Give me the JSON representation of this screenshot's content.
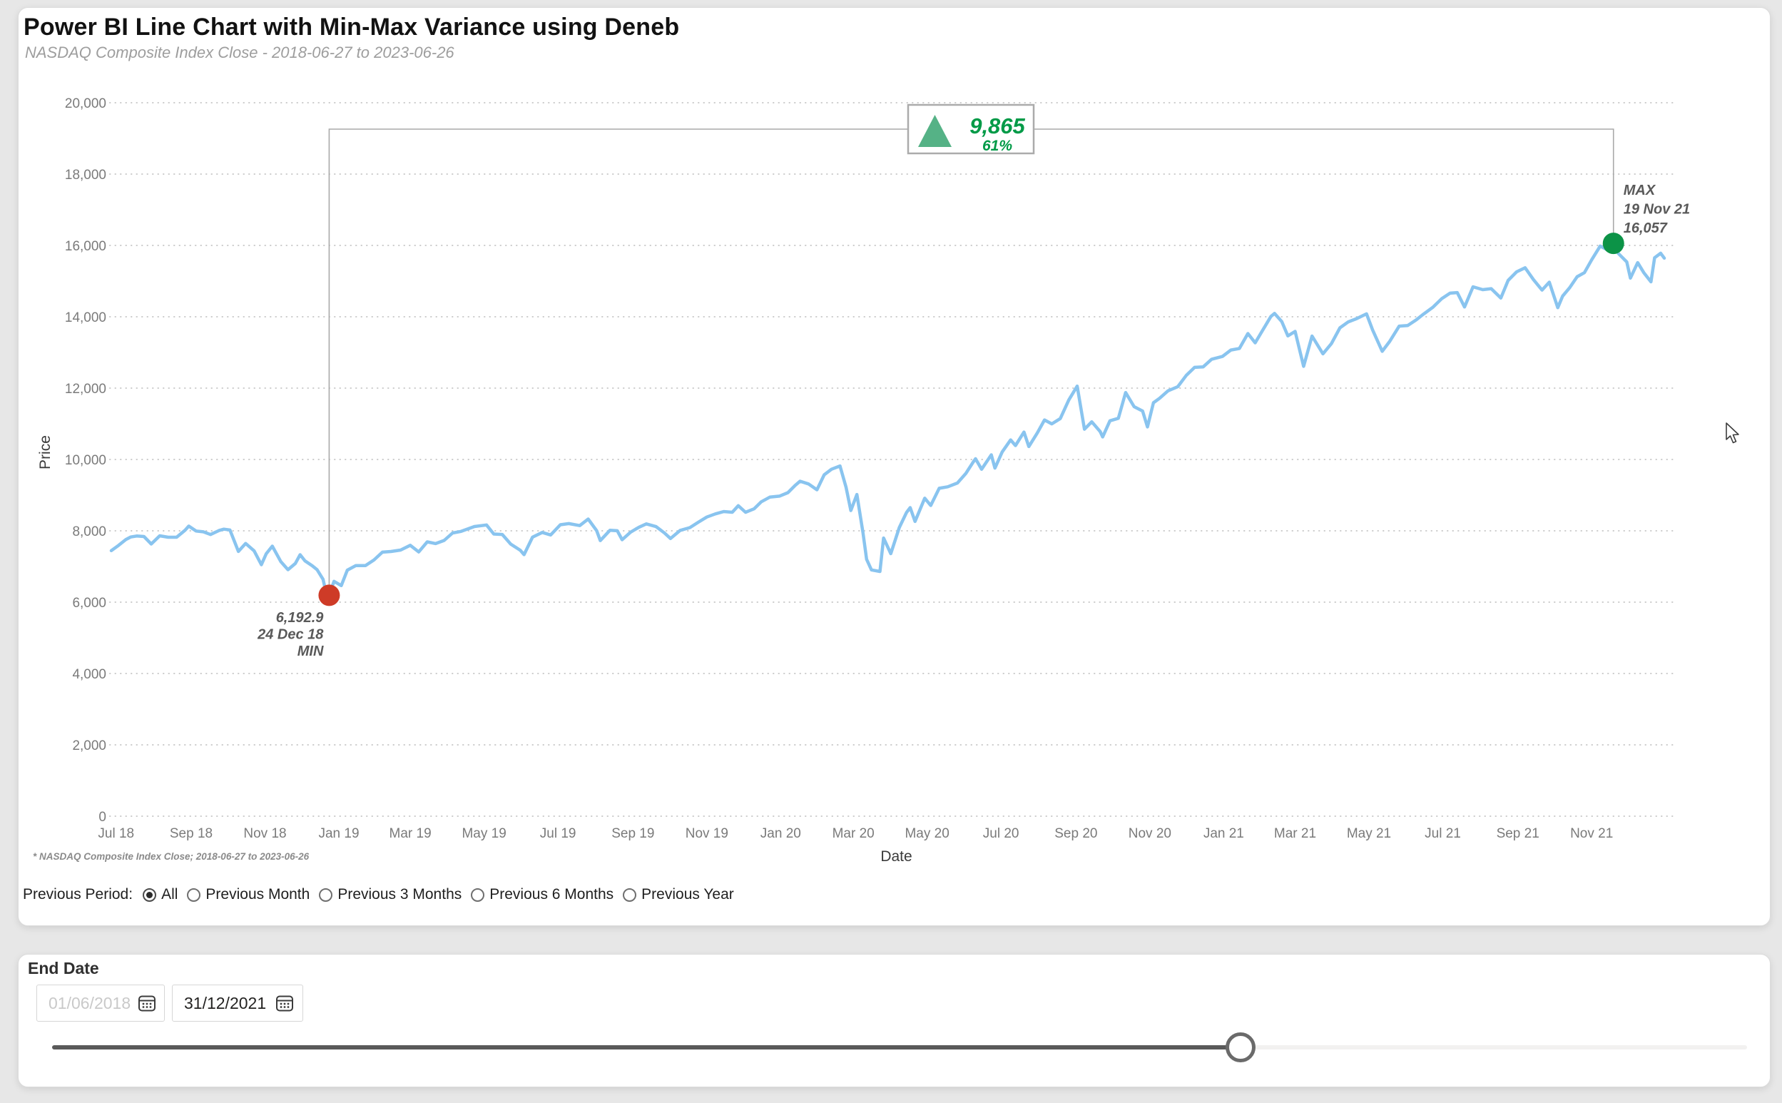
{
  "header": {
    "title": "Power BI Line Chart with Min-Max Variance using Deneb",
    "subtitle": "NASDAQ Composite Index Close - 2018-06-27 to 2023-06-26"
  },
  "chart_data": {
    "type": "line",
    "title": "Power BI Line Chart with Min-Max Variance using Deneb",
    "subtitle": "NASDAQ Composite Index Close - 2018-06-27 to 2023-06-26",
    "xlabel": "Date",
    "ylabel": "Price",
    "x_domain": [
      "2018-06-27",
      "2021-12-31"
    ],
    "ylim": [
      0,
      20000
    ],
    "grid": "dotted-horizontal",
    "legend": "none",
    "y_ticks": [
      0,
      2000,
      4000,
      6000,
      8000,
      10000,
      12000,
      14000,
      16000,
      18000,
      20000
    ],
    "x_ticks": [
      {
        "date": "2018-07-01",
        "label": "Jul 18"
      },
      {
        "date": "2018-09-01",
        "label": "Sep 18"
      },
      {
        "date": "2018-11-01",
        "label": "Nov 18"
      },
      {
        "date": "2019-01-01",
        "label": "Jan 19"
      },
      {
        "date": "2019-03-01",
        "label": "Mar 19"
      },
      {
        "date": "2019-05-01",
        "label": "May 19"
      },
      {
        "date": "2019-07-01",
        "label": "Jul 19"
      },
      {
        "date": "2019-09-01",
        "label": "Sep 19"
      },
      {
        "date": "2019-11-01",
        "label": "Nov 19"
      },
      {
        "date": "2020-01-01",
        "label": "Jan 20"
      },
      {
        "date": "2020-03-01",
        "label": "Mar 20"
      },
      {
        "date": "2020-05-01",
        "label": "May 20"
      },
      {
        "date": "2020-07-01",
        "label": "Jul 20"
      },
      {
        "date": "2020-09-01",
        "label": "Sep 20"
      },
      {
        "date": "2020-11-01",
        "label": "Nov 20"
      },
      {
        "date": "2021-01-01",
        "label": "Jan 21"
      },
      {
        "date": "2021-03-01",
        "label": "Mar 21"
      },
      {
        "date": "2021-05-01",
        "label": "May 21"
      },
      {
        "date": "2021-07-01",
        "label": "Jul 21"
      },
      {
        "date": "2021-09-01",
        "label": "Sep 21"
      },
      {
        "date": "2021-11-01",
        "label": "Nov 21"
      }
    ],
    "series": [
      {
        "name": "NASDAQ Composite Index Close",
        "color": "#89C4EF",
        "points": [
          [
            "2018-06-27",
            7445
          ],
          [
            "2018-07-03",
            7592
          ],
          [
            "2018-07-09",
            7756
          ],
          [
            "2018-07-13",
            7826
          ],
          [
            "2018-07-18",
            7855
          ],
          [
            "2018-07-24",
            7841
          ],
          [
            "2018-07-30",
            7630
          ],
          [
            "2018-08-06",
            7860
          ],
          [
            "2018-08-13",
            7819
          ],
          [
            "2018-08-20",
            7821
          ],
          [
            "2018-08-27",
            8017
          ],
          [
            "2018-08-30",
            8133
          ],
          [
            "2018-09-05",
            7995
          ],
          [
            "2018-09-11",
            7972
          ],
          [
            "2018-09-17",
            7896
          ],
          [
            "2018-09-24",
            8007
          ],
          [
            "2018-09-28",
            8046
          ],
          [
            "2018-10-03",
            8025
          ],
          [
            "2018-10-10",
            7422
          ],
          [
            "2018-10-16",
            7646
          ],
          [
            "2018-10-23",
            7438
          ],
          [
            "2018-10-29",
            7051
          ],
          [
            "2018-11-02",
            7357
          ],
          [
            "2018-11-07",
            7571
          ],
          [
            "2018-11-14",
            7137
          ],
          [
            "2018-11-20",
            6909
          ],
          [
            "2018-11-26",
            7082
          ],
          [
            "2018-11-30",
            7331
          ],
          [
            "2018-12-04",
            7158
          ],
          [
            "2018-12-10",
            7021
          ],
          [
            "2018-12-14",
            6911
          ],
          [
            "2018-12-19",
            6637
          ],
          [
            "2018-12-21",
            6333
          ],
          [
            "2018-12-24",
            6192.9
          ],
          [
            "2018-12-28",
            6585
          ],
          [
            "2019-01-03",
            6464
          ],
          [
            "2019-01-08",
            6897
          ],
          [
            "2019-01-15",
            7024
          ],
          [
            "2019-01-23",
            7026
          ],
          [
            "2019-01-30",
            7183
          ],
          [
            "2019-02-06",
            7403
          ],
          [
            "2019-02-13",
            7421
          ],
          [
            "2019-02-21",
            7459
          ],
          [
            "2019-03-01",
            7595
          ],
          [
            "2019-03-08",
            7408
          ],
          [
            "2019-03-15",
            7689
          ],
          [
            "2019-03-22",
            7643
          ],
          [
            "2019-03-29",
            7729
          ],
          [
            "2019-04-05",
            7939
          ],
          [
            "2019-04-12",
            7984
          ],
          [
            "2019-04-23",
            8121
          ],
          [
            "2019-05-03",
            8164
          ],
          [
            "2019-05-09",
            7911
          ],
          [
            "2019-05-16",
            7898
          ],
          [
            "2019-05-23",
            7628
          ],
          [
            "2019-05-31",
            7453
          ],
          [
            "2019-06-03",
            7333
          ],
          [
            "2019-06-10",
            7823
          ],
          [
            "2019-06-18",
            7954
          ],
          [
            "2019-06-25",
            7885
          ],
          [
            "2019-07-03",
            8170
          ],
          [
            "2019-07-10",
            8203
          ],
          [
            "2019-07-19",
            8146
          ],
          [
            "2019-07-26",
            8330
          ],
          [
            "2019-08-02",
            8004
          ],
          [
            "2019-08-05",
            7726
          ],
          [
            "2019-08-13",
            8016
          ],
          [
            "2019-08-19",
            8003
          ],
          [
            "2019-08-23",
            7751
          ],
          [
            "2019-08-30",
            7963
          ],
          [
            "2019-09-06",
            8103
          ],
          [
            "2019-09-12",
            8194
          ],
          [
            "2019-09-20",
            8118
          ],
          [
            "2019-09-27",
            7940
          ],
          [
            "2019-10-02",
            7785
          ],
          [
            "2019-10-10",
            8013
          ],
          [
            "2019-10-18",
            8090
          ],
          [
            "2019-10-25",
            8243
          ],
          [
            "2019-11-01",
            8386
          ],
          [
            "2019-11-08",
            8475
          ],
          [
            "2019-11-15",
            8541
          ],
          [
            "2019-11-22",
            8520
          ],
          [
            "2019-11-27",
            8705
          ],
          [
            "2019-12-03",
            8521
          ],
          [
            "2019-12-10",
            8616
          ],
          [
            "2019-12-16",
            8814
          ],
          [
            "2019-12-23",
            8945
          ],
          [
            "2019-12-31",
            8973
          ],
          [
            "2020-01-07",
            9069
          ],
          [
            "2020-01-13",
            9274
          ],
          [
            "2020-01-17",
            9389
          ],
          [
            "2020-01-24",
            9315
          ],
          [
            "2020-01-31",
            9151
          ],
          [
            "2020-02-06",
            9572
          ],
          [
            "2020-02-12",
            9726
          ],
          [
            "2020-02-19",
            9817
          ],
          [
            "2020-02-24",
            9221
          ],
          [
            "2020-02-28",
            8567
          ],
          [
            "2020-03-04",
            9018
          ],
          [
            "2020-03-09",
            7951
          ],
          [
            "2020-03-12",
            7202
          ],
          [
            "2020-03-16",
            6905
          ],
          [
            "2020-03-23",
            6861
          ],
          [
            "2020-03-26",
            7797
          ],
          [
            "2020-04-01",
            7361
          ],
          [
            "2020-04-08",
            8091
          ],
          [
            "2020-04-14",
            8516
          ],
          [
            "2020-04-17",
            8650
          ],
          [
            "2020-04-21",
            8263
          ],
          [
            "2020-04-29",
            8915
          ],
          [
            "2020-05-04",
            8710
          ],
          [
            "2020-05-11",
            9192
          ],
          [
            "2020-05-18",
            9235
          ],
          [
            "2020-05-26",
            9340
          ],
          [
            "2020-06-02",
            9608
          ],
          [
            "2020-06-08",
            9924
          ],
          [
            "2020-06-10",
            10020
          ],
          [
            "2020-06-15",
            9726
          ],
          [
            "2020-06-23",
            10131
          ],
          [
            "2020-06-26",
            9757
          ],
          [
            "2020-07-02",
            10208
          ],
          [
            "2020-07-09",
            10548
          ],
          [
            "2020-07-13",
            10390
          ],
          [
            "2020-07-20",
            10767
          ],
          [
            "2020-07-24",
            10363
          ],
          [
            "2020-07-31",
            10745
          ],
          [
            "2020-08-06",
            11108
          ],
          [
            "2020-08-12",
            10998
          ],
          [
            "2020-08-19",
            11146
          ],
          [
            "2020-08-26",
            11666
          ],
          [
            "2020-09-02",
            12056
          ],
          [
            "2020-09-08",
            10848
          ],
          [
            "2020-09-14",
            11056
          ],
          [
            "2020-09-21",
            10779
          ],
          [
            "2020-09-23",
            10633
          ],
          [
            "2020-09-29",
            11085
          ],
          [
            "2020-10-06",
            11155
          ],
          [
            "2020-10-12",
            11876
          ],
          [
            "2020-10-19",
            11479
          ],
          [
            "2020-10-26",
            11358
          ],
          [
            "2020-10-30",
            10912
          ],
          [
            "2020-11-04",
            11591
          ],
          [
            "2020-11-09",
            11714
          ],
          [
            "2020-11-16",
            11924
          ],
          [
            "2020-11-24",
            12037
          ],
          [
            "2020-12-01",
            12355
          ],
          [
            "2020-12-08",
            12583
          ],
          [
            "2020-12-15",
            12595
          ],
          [
            "2020-12-22",
            12808
          ],
          [
            "2020-12-31",
            12888
          ],
          [
            "2021-01-07",
            13067
          ],
          [
            "2021-01-14",
            13113
          ],
          [
            "2021-01-21",
            13531
          ],
          [
            "2021-01-27",
            13271
          ],
          [
            "2021-02-02",
            13613
          ],
          [
            "2021-02-09",
            14008
          ],
          [
            "2021-02-12",
            14095
          ],
          [
            "2021-02-18",
            13865
          ],
          [
            "2021-02-23",
            13465
          ],
          [
            "2021-03-01",
            13589
          ],
          [
            "2021-03-08",
            12609
          ],
          [
            "2021-03-15",
            13460
          ],
          [
            "2021-03-24",
            12962
          ],
          [
            "2021-03-31",
            13247
          ],
          [
            "2021-04-07",
            13689
          ],
          [
            "2021-04-14",
            13858
          ],
          [
            "2021-04-21",
            13950
          ],
          [
            "2021-04-29",
            14083
          ],
          [
            "2021-05-04",
            13633
          ],
          [
            "2021-05-12",
            13032
          ],
          [
            "2021-05-18",
            13303
          ],
          [
            "2021-05-26",
            13738
          ],
          [
            "2021-06-02",
            13756
          ],
          [
            "2021-06-09",
            13912
          ],
          [
            "2021-06-15",
            14072
          ],
          [
            "2021-06-23",
            14272
          ],
          [
            "2021-06-30",
            14504
          ],
          [
            "2021-07-07",
            14663
          ],
          [
            "2021-07-13",
            14677
          ],
          [
            "2021-07-19",
            14275
          ],
          [
            "2021-07-26",
            14841
          ],
          [
            "2021-08-03",
            14761
          ],
          [
            "2021-08-10",
            14788
          ],
          [
            "2021-08-18",
            14526
          ],
          [
            "2021-08-24",
            15019
          ],
          [
            "2021-08-31",
            15259
          ],
          [
            "2021-09-07",
            15374
          ],
          [
            "2021-09-14",
            15038
          ],
          [
            "2021-09-21",
            14747
          ],
          [
            "2021-09-27",
            14970
          ],
          [
            "2021-10-04",
            14255
          ],
          [
            "2021-10-08",
            14579
          ],
          [
            "2021-10-14",
            14823
          ],
          [
            "2021-10-20",
            15122
          ],
          [
            "2021-10-26",
            15236
          ],
          [
            "2021-11-01",
            15596
          ],
          [
            "2021-11-08",
            15983
          ],
          [
            "2021-11-15",
            15861
          ],
          [
            "2021-11-19",
            16057
          ],
          [
            "2021-11-23",
            15776
          ],
          [
            "2021-11-30",
            15538
          ],
          [
            "2021-12-03",
            15085
          ],
          [
            "2021-12-09",
            15517
          ],
          [
            "2021-12-14",
            15238
          ],
          [
            "2021-12-20",
            14981
          ],
          [
            "2021-12-23",
            15654
          ],
          [
            "2021-12-28",
            15782
          ],
          [
            "2021-12-31",
            15645
          ]
        ]
      }
    ],
    "annotations": {
      "min": {
        "date": "2018-12-24",
        "value": 6192.9,
        "lines": [
          "6,192.9",
          "24 Dec 18",
          "MIN"
        ],
        "marker_color": "#CE3B27"
      },
      "max": {
        "date": "2021-11-19",
        "value": 16057,
        "lines": [
          "MAX",
          "19 Nov 21",
          "16,057"
        ],
        "marker_color": "#0C9347"
      },
      "variance": {
        "value_label": "9,865",
        "percent_label": "61%",
        "direction": "up",
        "text_color": "#009A47",
        "arrow_color": "#55B286",
        "box_border": "#ABABAB"
      }
    },
    "footnote": "* NASDAQ Composite Index Close; 2018-06-27 to 2023-06-26",
    "colors": {
      "grid": "#CBCBCB",
      "connector": "#A9A9A9",
      "axis_text": "#7a7a7a",
      "annotation_text": "#595959"
    }
  },
  "controls": {
    "label": "Previous Period:",
    "options": [
      {
        "label": "All",
        "selected": true
      },
      {
        "label": "Previous Month",
        "selected": false
      },
      {
        "label": "Previous 3 Months",
        "selected": false
      },
      {
        "label": "Previous 6 Months",
        "selected": false
      },
      {
        "label": "Previous Year",
        "selected": false
      }
    ]
  },
  "end_date_panel": {
    "title": "End Date",
    "start_date": {
      "value": "01/06/2018",
      "disabled": true
    },
    "end_date": {
      "value": "31/12/2021",
      "disabled": false
    },
    "slider": {
      "percent": 70.1
    }
  }
}
